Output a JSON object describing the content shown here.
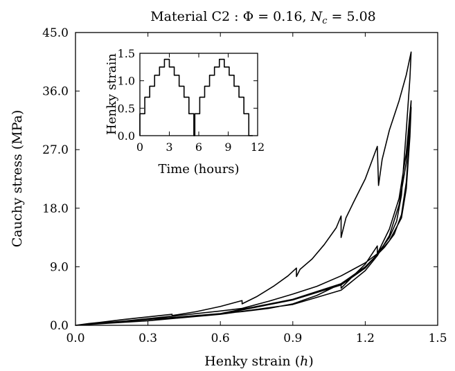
{
  "chart_data": [
    {
      "type": "line",
      "title": "Material C2 : Φ = 0.16, Nᶄ = 5.08",
      "title_parts": {
        "prefix": "Material C2 : Φ = 0.16, ",
        "symbol": "N",
        "subscript": "c",
        "suffix": " = 5.08"
      },
      "xlabel": "Henky strain (h)",
      "xlabel_parts": {
        "text": "Henky strain (",
        "symbol": "h",
        "close": ")"
      },
      "ylabel": "Cauchy stress (MPa)",
      "xlim": [
        0.0,
        1.5
      ],
      "ylim": [
        0.0,
        45.0
      ],
      "xticks": [
        "0.0",
        "0.3",
        "0.6",
        "0.9",
        "1.2",
        "1.5"
      ],
      "yticks": [
        "0.0",
        "9.0",
        "18.0",
        "27.0",
        "36.0",
        "45.0"
      ],
      "grid": false,
      "series": [
        {
          "values": [
            [
              0.0,
              0.0
            ],
            [
              0.05,
              0.25
            ],
            [
              0.1,
              0.45
            ],
            [
              0.2,
              0.9
            ],
            [
              0.3,
              1.3
            ],
            [
              0.4,
              1.7
            ],
            [
              0.4,
              1.5
            ],
            [
              0.5,
              2.1
            ],
            [
              0.6,
              2.9
            ],
            [
              0.69,
              3.8
            ],
            [
              0.69,
              3.3
            ],
            [
              0.75,
              4.4
            ],
            [
              0.82,
              6.0
            ],
            [
              0.88,
              7.6
            ],
            [
              0.915,
              8.8
            ],
            [
              0.915,
              7.5
            ],
            [
              0.93,
              8.6
            ],
            [
              0.98,
              10.2
            ],
            [
              1.03,
              12.4
            ],
            [
              1.08,
              15.0
            ],
            [
              1.1,
              16.8
            ],
            [
              1.1,
              13.5
            ],
            [
              1.12,
              16.5
            ],
            [
              1.15,
              18.8
            ],
            [
              1.2,
              22.5
            ],
            [
              1.25,
              27.5
            ],
            [
              1.255,
              21.5
            ],
            [
              1.27,
              25.5
            ],
            [
              1.3,
              30.0
            ],
            [
              1.34,
              34.5
            ],
            [
              1.37,
              38.5
            ],
            [
              1.39,
              42.0
            ],
            [
              1.385,
              38.0
            ],
            [
              1.37,
              30.0
            ],
            [
              1.35,
              20.0
            ],
            [
              1.33,
              16.0
            ],
            [
              1.3,
              13.5
            ],
            [
              1.25,
              11.0
            ],
            [
              1.2,
              9.6
            ],
            [
              1.1,
              7.6
            ],
            [
              1.0,
              6.0
            ],
            [
              0.9,
              4.8
            ],
            [
              0.8,
              3.7
            ],
            [
              0.69,
              2.6
            ],
            [
              0.6,
              2.2
            ],
            [
              0.4,
              1.4
            ],
            [
              0.2,
              0.65
            ],
            [
              0.0,
              0.0
            ],
            [
              0.2,
              0.6
            ],
            [
              0.4,
              1.2
            ],
            [
              0.6,
              1.8
            ],
            [
              0.69,
              2.1
            ],
            [
              0.8,
              2.6
            ],
            [
              0.9,
              3.3
            ],
            [
              1.0,
              4.6
            ],
            [
              1.1,
              6.4
            ],
            [
              1.1,
              5.7
            ],
            [
              1.15,
              7.6
            ],
            [
              1.2,
              9.4
            ],
            [
              1.25,
              12.2
            ],
            [
              1.25,
              11.0
            ],
            [
              1.3,
              14.8
            ],
            [
              1.34,
              19.5
            ],
            [
              1.37,
              26.5
            ],
            [
              1.39,
              34.5
            ],
            [
              1.385,
              30.0
            ],
            [
              1.37,
              22.0
            ],
            [
              1.35,
              17.0
            ],
            [
              1.32,
              14.0
            ],
            [
              1.28,
              12.0
            ],
            [
              1.2,
              9.0
            ],
            [
              1.1,
              6.4
            ],
            [
              0.9,
              4.0
            ],
            [
              0.6,
              1.8
            ],
            [
              0.3,
              0.7
            ],
            [
              0.0,
              0.0
            ],
            [
              0.3,
              0.7
            ],
            [
              0.6,
              1.7
            ],
            [
              0.9,
              3.2
            ],
            [
              1.1,
              5.4
            ],
            [
              1.2,
              8.4
            ],
            [
              1.25,
              10.7
            ],
            [
              1.3,
              13.8
            ],
            [
              1.34,
              18.5
            ],
            [
              1.37,
              25.0
            ],
            [
              1.39,
              33.5
            ],
            [
              1.385,
              29.0
            ],
            [
              1.37,
              21.0
            ],
            [
              1.35,
              16.5
            ],
            [
              1.3,
              13.0
            ],
            [
              1.2,
              8.8
            ],
            [
              1.1,
              6.2
            ],
            [
              0.9,
              3.9
            ],
            [
              0.6,
              1.7
            ],
            [
              0.3,
              0.7
            ],
            [
              0.0,
              0.0
            ]
          ]
        }
      ]
    },
    {
      "type": "line",
      "title": "",
      "xlabel": "Time (hours)",
      "ylabel": "Henky strain",
      "xlim": [
        0,
        12
      ],
      "ylim": [
        0.0,
        1.5
      ],
      "xticks": [
        "0",
        "3",
        "6",
        "9",
        "12"
      ],
      "yticks": [
        "0.0",
        "0.5",
        "1.0",
        "1.5"
      ],
      "grid": false,
      "legend": "none",
      "series": [
        {
          "values": [
            [
              0,
              0.0
            ],
            [
              0,
              0.4
            ],
            [
              0.5,
              0.4
            ],
            [
              0.5,
              0.7
            ],
            [
              1.0,
              0.7
            ],
            [
              1.0,
              0.9
            ],
            [
              1.5,
              0.9
            ],
            [
              1.5,
              1.1
            ],
            [
              2.0,
              1.1
            ],
            [
              2.0,
              1.25
            ],
            [
              2.5,
              1.25
            ],
            [
              2.5,
              1.39
            ],
            [
              3.0,
              1.39
            ],
            [
              3.0,
              1.25
            ],
            [
              3.5,
              1.25
            ],
            [
              3.5,
              1.1
            ],
            [
              4.0,
              1.1
            ],
            [
              4.0,
              0.9
            ],
            [
              4.5,
              0.9
            ],
            [
              4.5,
              0.7
            ],
            [
              5.0,
              0.7
            ],
            [
              5.0,
              0.4
            ],
            [
              5.5,
              0.4
            ],
            [
              5.5,
              0.0
            ],
            [
              5.6,
              0.0
            ],
            [
              5.6,
              0.4
            ],
            [
              6.1,
              0.4
            ],
            [
              6.1,
              0.7
            ],
            [
              6.6,
              0.7
            ],
            [
              6.6,
              0.9
            ],
            [
              7.1,
              0.9
            ],
            [
              7.1,
              1.1
            ],
            [
              7.6,
              1.1
            ],
            [
              7.6,
              1.25
            ],
            [
              8.1,
              1.25
            ],
            [
              8.1,
              1.39
            ],
            [
              8.6,
              1.39
            ],
            [
              8.6,
              1.25
            ],
            [
              9.1,
              1.25
            ],
            [
              9.1,
              1.1
            ],
            [
              9.6,
              1.1
            ],
            [
              9.6,
              0.9
            ],
            [
              10.1,
              0.9
            ],
            [
              10.1,
              0.7
            ],
            [
              10.6,
              0.7
            ],
            [
              10.6,
              0.4
            ],
            [
              11.1,
              0.4
            ],
            [
              11.1,
              0.0
            ],
            [
              11.5,
              0.0
            ]
          ]
        }
      ]
    }
  ]
}
